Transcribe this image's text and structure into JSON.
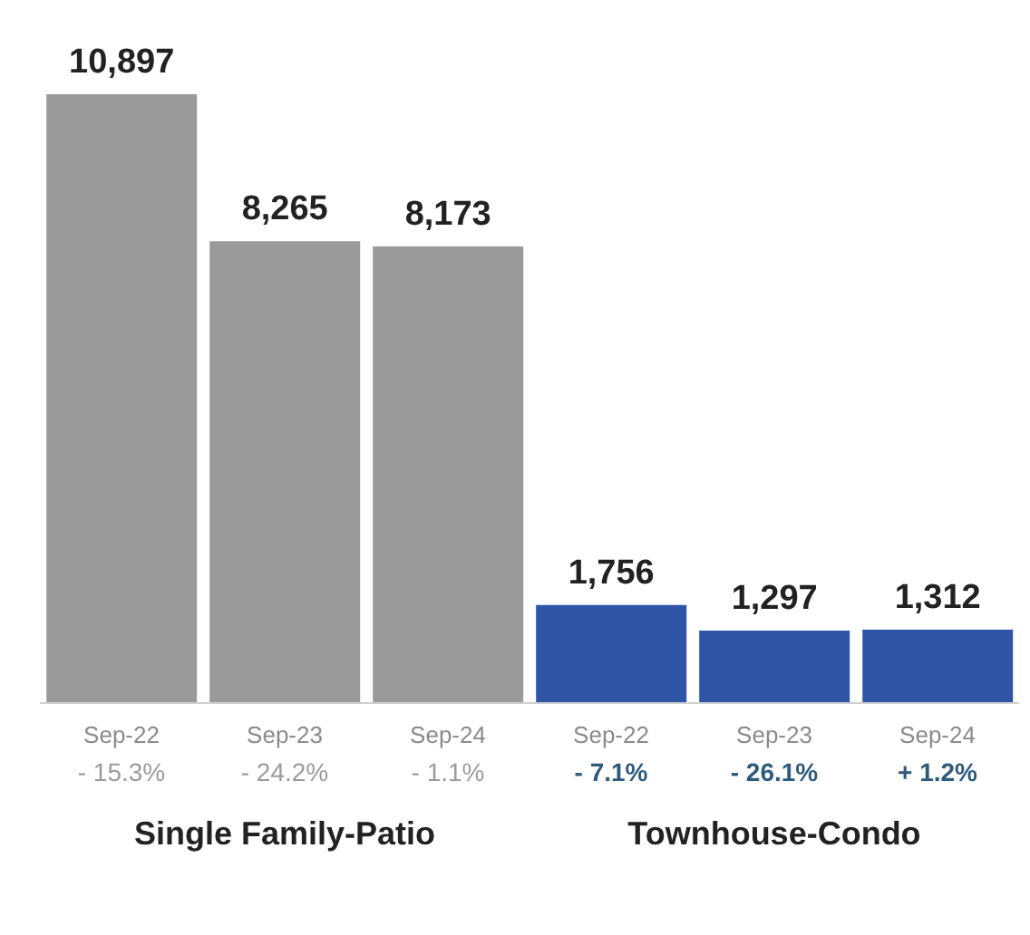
{
  "chart_data": {
    "type": "bar",
    "categories": [
      "Sep-22",
      "Sep-23",
      "Sep-24",
      "Sep-22",
      "Sep-23",
      "Sep-24"
    ],
    "values": [
      10897,
      8265,
      8173,
      1756,
      1297,
      1312
    ],
    "colors": [
      "#9a9a9a",
      "#9a9a9a",
      "#9a9a9a",
      "#2f56a6",
      "#2f56a6",
      "#2f56a6"
    ],
    "value_labels": [
      "10,897",
      "8,265",
      "8,173",
      "1,756",
      "1,297",
      "1,312"
    ],
    "tick_labels": "x",
    "annotations": [
      "- 15.3%",
      "- 24.2%",
      "- 1.1%",
      "- 7.1%",
      "- 26.1%",
      "+ 1.2%",
      "Single Family-Patio",
      "Townhouse-Condo"
    ]
  }
}
